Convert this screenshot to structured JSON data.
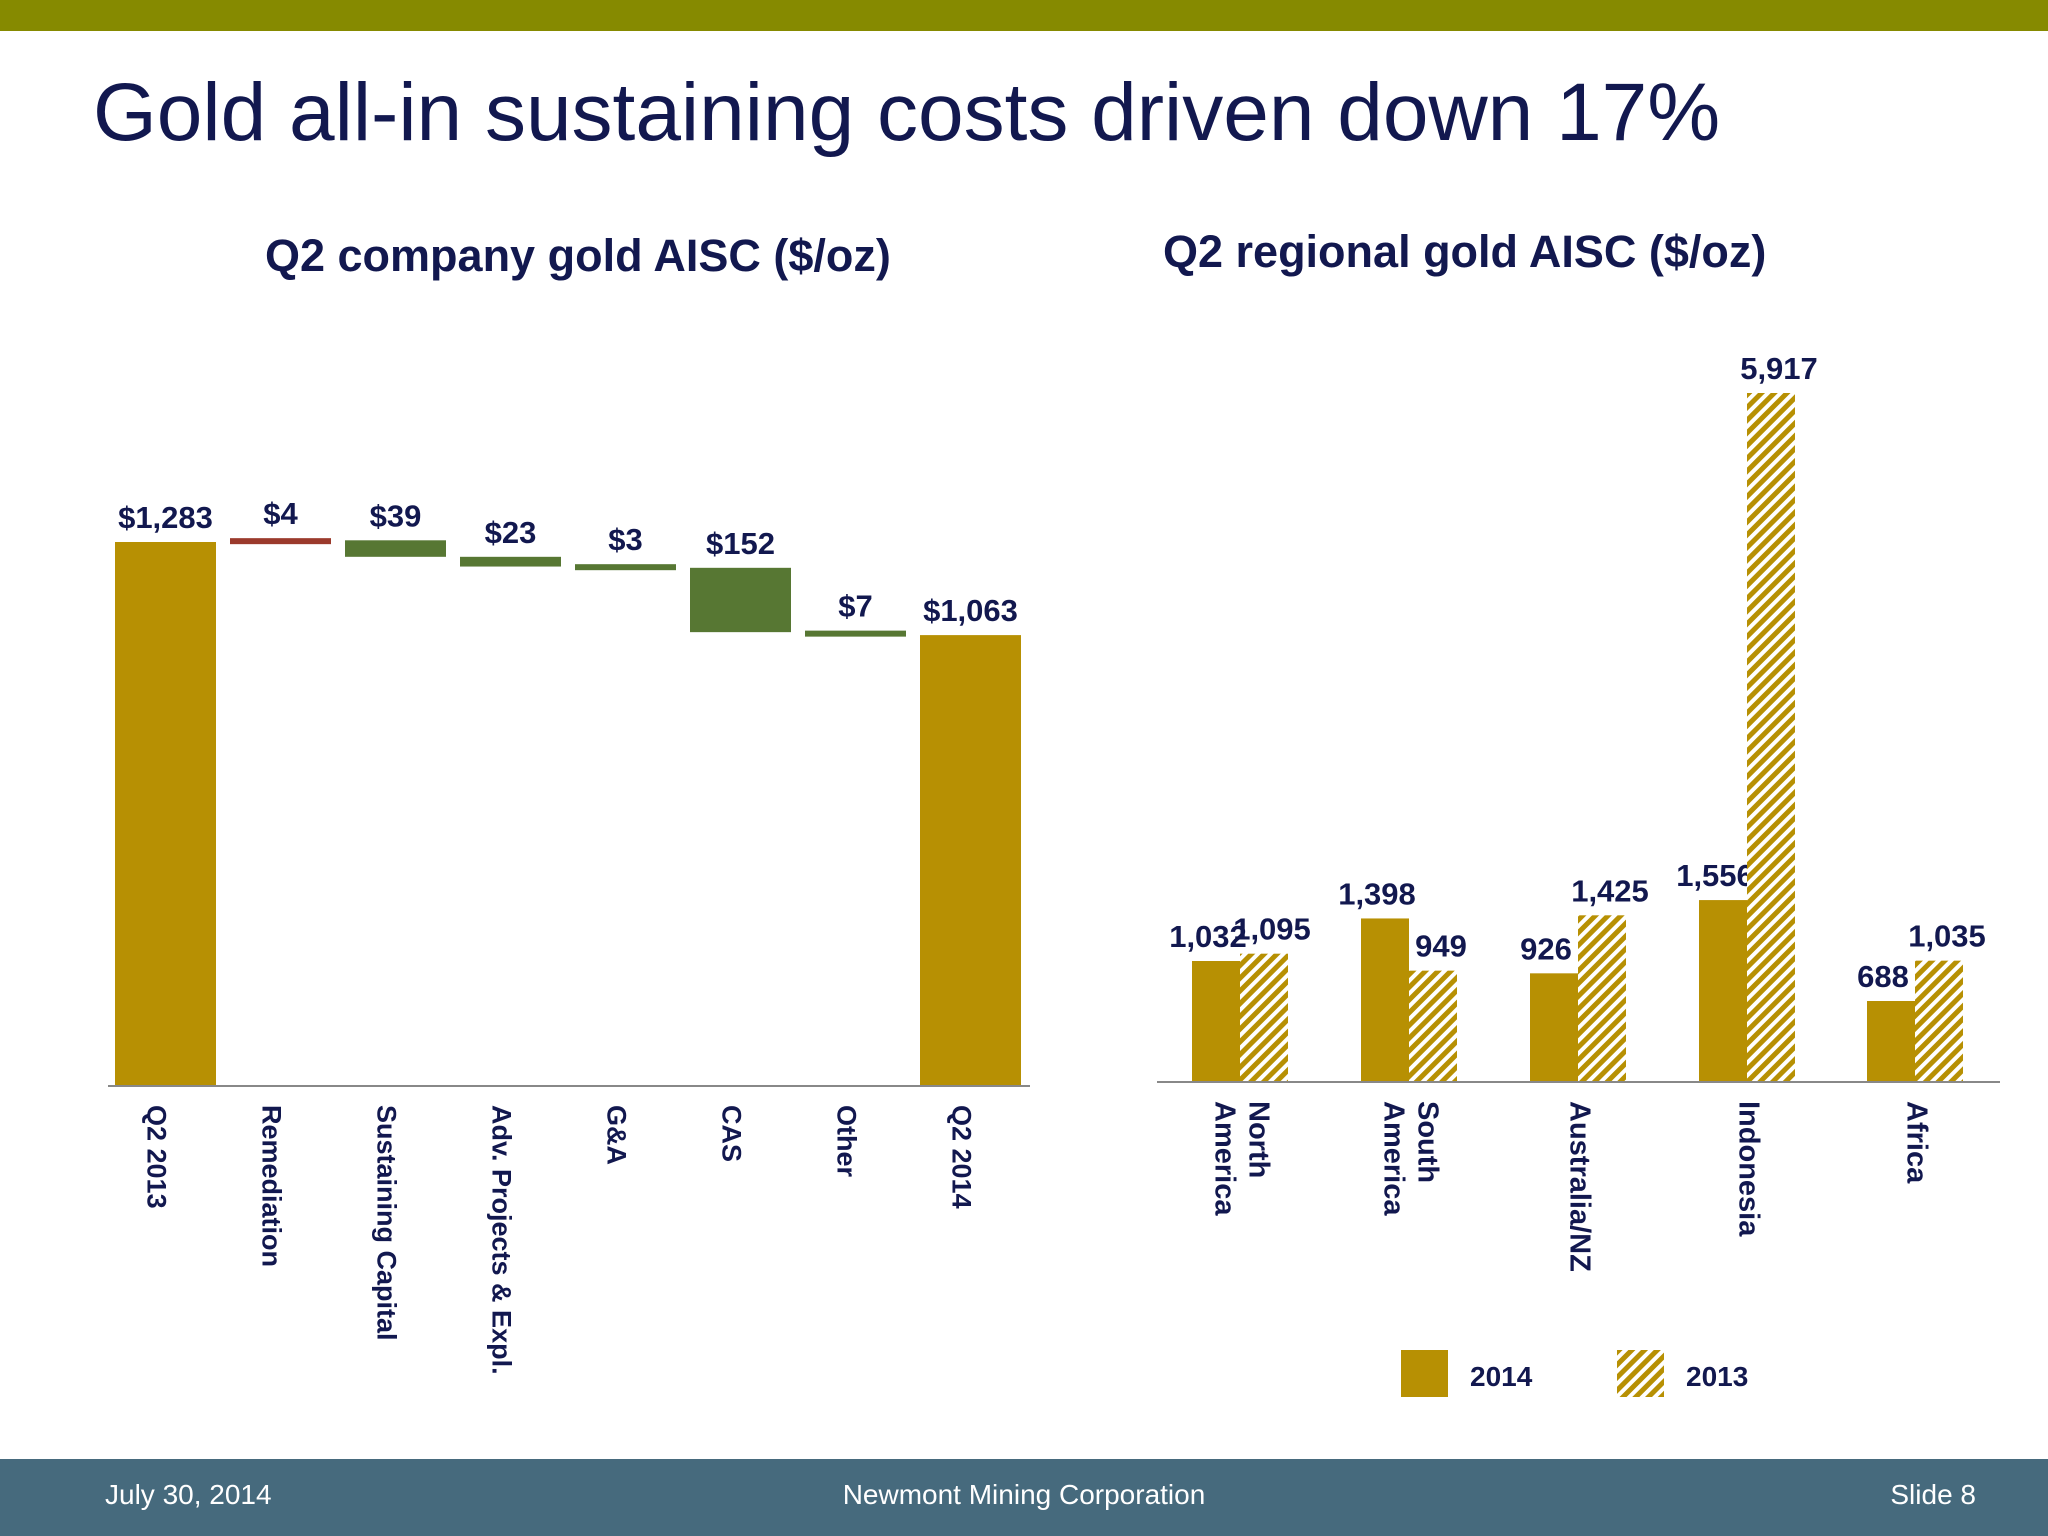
{
  "slide": {
    "title": "Gold all-in sustaining costs driven down 17%"
  },
  "colors": {
    "gold": "#b79003",
    "green": "#577733",
    "red": "#9b3a2c",
    "navy": "#12184f",
    "axis": "#888888",
    "top_bar": "#868a00",
    "footer_bg": "#466a7d"
  },
  "chart_data": [
    {
      "type": "bar",
      "subtype": "waterfall",
      "title": "Q2 company gold AISC ($/oz)",
      "categories": [
        "Q2 2013",
        "Remediation",
        "Sustaining Capital",
        "Adv. Projects & Expl.",
        "G&A",
        "CAS",
        "Other",
        "Q2 2014"
      ],
      "steps": [
        {
          "label": "$1,283",
          "kind": "total",
          "value": 1283
        },
        {
          "label": "$4",
          "kind": "increase",
          "value": 4
        },
        {
          "label": "$39",
          "kind": "decrease",
          "value": 39
        },
        {
          "label": "$23",
          "kind": "decrease",
          "value": 23
        },
        {
          "label": "$3",
          "kind": "decrease",
          "value": 3
        },
        {
          "label": "$152",
          "kind": "decrease",
          "value": 152
        },
        {
          "label": "$7",
          "kind": "decrease",
          "value": 7
        },
        {
          "label": "$1,063",
          "kind": "total",
          "value": 1063
        }
      ],
      "xlabel": "",
      "ylabel": "",
      "grid": false
    },
    {
      "type": "bar",
      "title": "Q2 regional gold AISC ($/oz)",
      "categories": [
        "North America",
        "South America",
        "Australia/NZ",
        "Indonesia",
        "Africa"
      ],
      "category_lines": [
        [
          "North",
          "America"
        ],
        [
          "South",
          "America"
        ],
        [
          "Australia/NZ"
        ],
        [
          "Indonesia"
        ],
        [
          "Africa"
        ]
      ],
      "series": [
        {
          "name": "2014",
          "values": [
            1032,
            1398,
            926,
            1556,
            688
          ],
          "labels": [
            "1,032",
            "1,398",
            "926",
            "1,556",
            "688"
          ],
          "pattern": "solid"
        },
        {
          "name": "2013",
          "values": [
            1095,
            949,
            1425,
            5917,
            1035
          ],
          "labels": [
            "1,095",
            "949",
            "1,425",
            "5,917",
            "1,035"
          ],
          "pattern": "hatched"
        }
      ],
      "legend": "bottom",
      "xlabel": "",
      "ylabel": "",
      "grid": false
    }
  ],
  "footer": {
    "date": "July 30, 2014",
    "company": "Newmont Mining Corporation",
    "slide": "Slide 8"
  }
}
